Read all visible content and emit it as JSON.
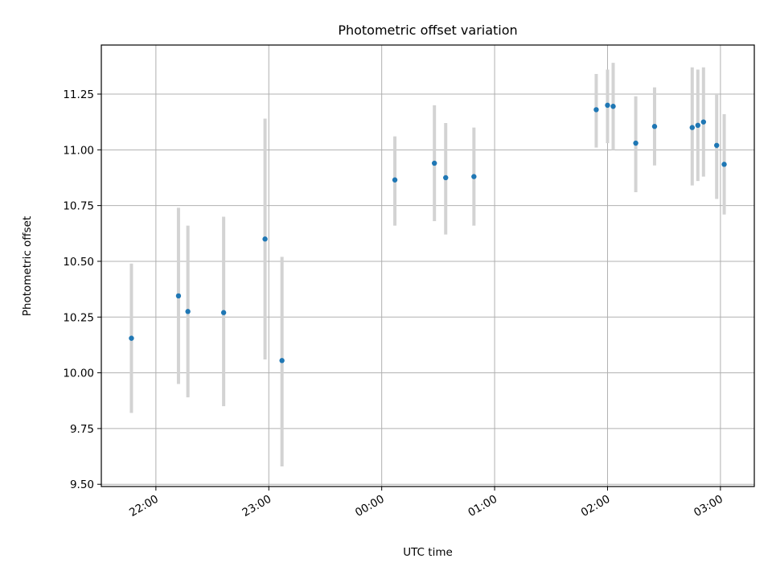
{
  "chart_data": {
    "type": "scatter",
    "title": "Photometric offset variation",
    "xlabel": "UTC time",
    "ylabel": "Photometric offset",
    "x_ticks": [
      "22:00",
      "23:00",
      "00:00",
      "01:00",
      "02:00",
      "03:00"
    ],
    "y_ticks": [
      "9.50",
      "9.75",
      "10.00",
      "10.25",
      "10.50",
      "10.75",
      "11.00",
      "11.25"
    ],
    "xlim": [
      "21:31",
      "03:18"
    ],
    "ylim": [
      9.49,
      11.47
    ],
    "grid": true,
    "error_bar_color": "#d3d3d3",
    "marker_color": "#1f77b4",
    "points": [
      {
        "x": "21:47",
        "y": 10.155,
        "yerr_low": 9.82,
        "yerr_high": 10.49
      },
      {
        "x": "22:12",
        "y": 10.345,
        "yerr_low": 9.95,
        "yerr_high": 10.74
      },
      {
        "x": "22:17",
        "y": 10.275,
        "yerr_low": 9.89,
        "yerr_high": 10.66
      },
      {
        "x": "22:36",
        "y": 10.27,
        "yerr_low": 9.85,
        "yerr_high": 10.7
      },
      {
        "x": "22:58",
        "y": 10.6,
        "yerr_low": 10.06,
        "yerr_high": 11.14
      },
      {
        "x": "23:07",
        "y": 10.055,
        "yerr_low": 9.58,
        "yerr_high": 10.52
      },
      {
        "x": "00:07",
        "y": 10.865,
        "yerr_low": 10.66,
        "yerr_high": 11.06
      },
      {
        "x": "00:28",
        "y": 10.94,
        "yerr_low": 10.68,
        "yerr_high": 11.2
      },
      {
        "x": "00:34",
        "y": 10.875,
        "yerr_low": 10.62,
        "yerr_high": 11.12
      },
      {
        "x": "00:49",
        "y": 10.88,
        "yerr_low": 10.66,
        "yerr_high": 11.1
      },
      {
        "x": "01:54",
        "y": 11.18,
        "yerr_low": 11.01,
        "yerr_high": 11.34
      },
      {
        "x": "02:00",
        "y": 11.2,
        "yerr_low": 11.03,
        "yerr_high": 11.36
      },
      {
        "x": "02:03",
        "y": 11.195,
        "yerr_low": 11.0,
        "yerr_high": 11.39
      },
      {
        "x": "02:15",
        "y": 11.03,
        "yerr_low": 10.81,
        "yerr_high": 11.24
      },
      {
        "x": "02:25",
        "y": 11.105,
        "yerr_low": 10.93,
        "yerr_high": 11.28
      },
      {
        "x": "02:45",
        "y": 11.1,
        "yerr_low": 10.84,
        "yerr_high": 11.37
      },
      {
        "x": "02:48",
        "y": 11.11,
        "yerr_low": 10.86,
        "yerr_high": 11.36
      },
      {
        "x": "02:51",
        "y": 11.125,
        "yerr_low": 10.88,
        "yerr_high": 11.37
      },
      {
        "x": "02:58",
        "y": 11.02,
        "yerr_low": 10.78,
        "yerr_high": 11.25
      },
      {
        "x": "03:02",
        "y": 10.935,
        "yerr_low": 10.71,
        "yerr_high": 11.16
      }
    ]
  }
}
